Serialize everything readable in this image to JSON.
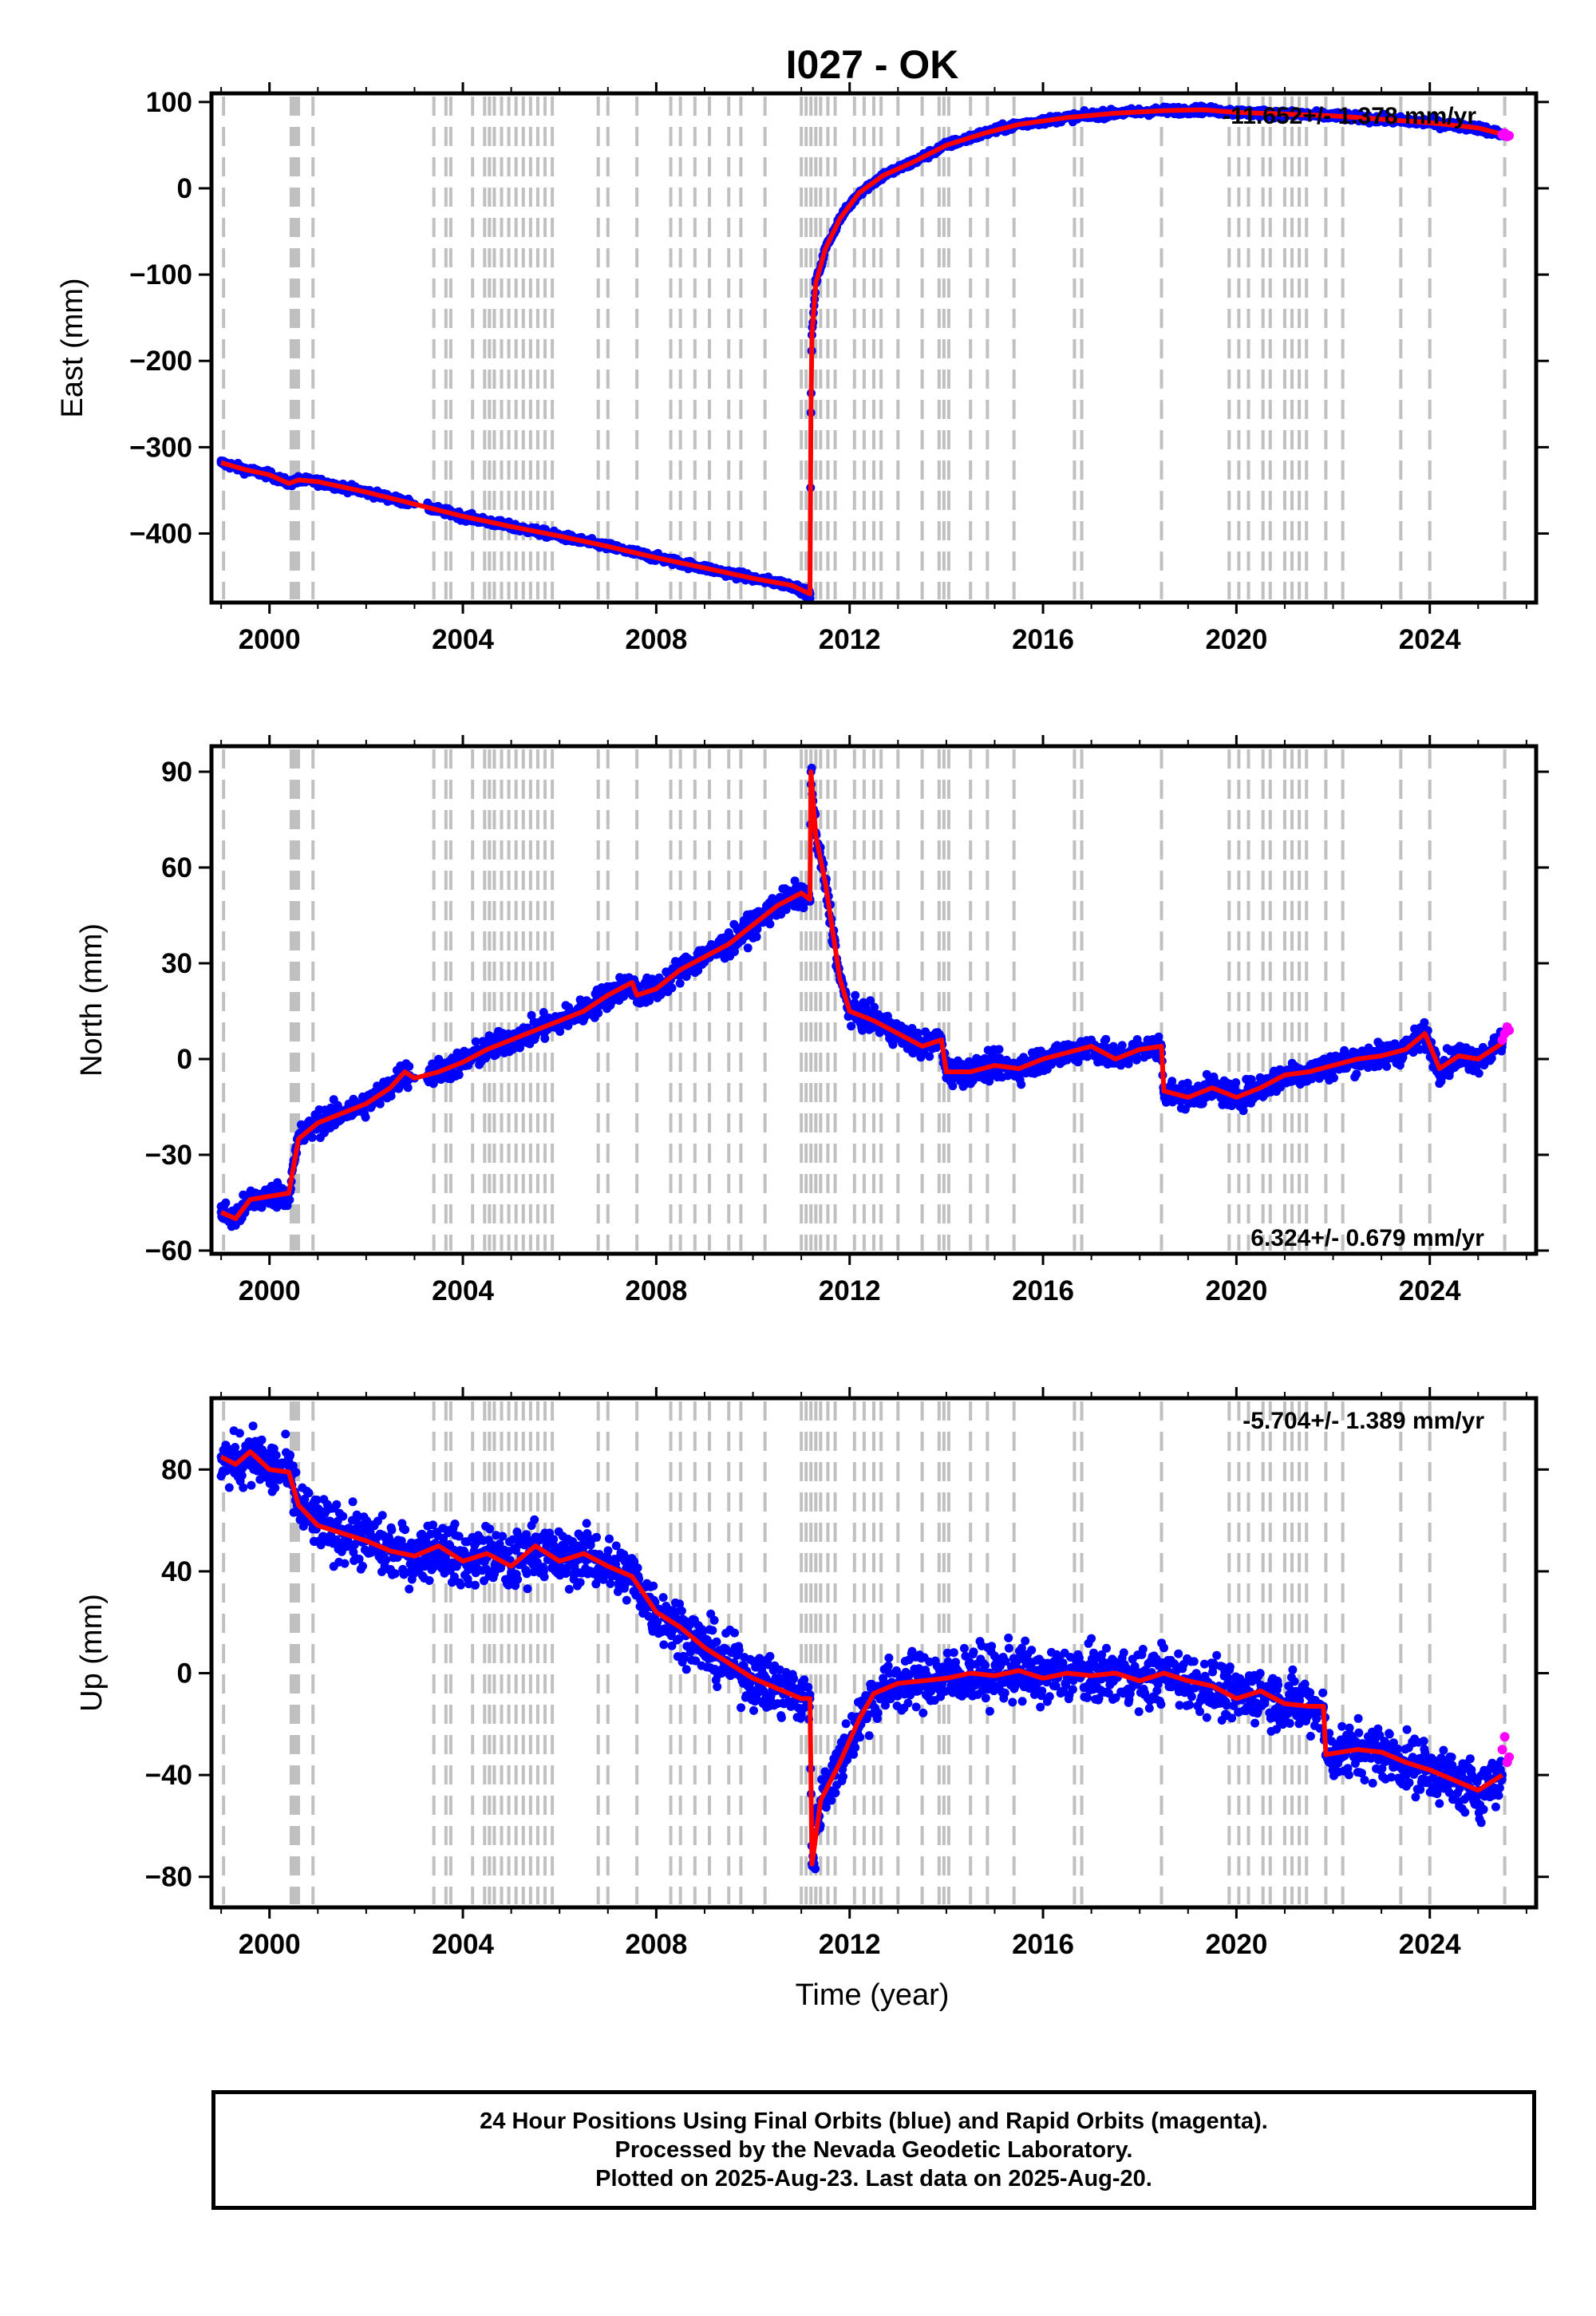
{
  "title": "I027 - OK",
  "xlabel": "Time (year)",
  "x_tick_labels": [
    "2000",
    "2004",
    "2008",
    "2012",
    "2016",
    "2020",
    "2024"
  ],
  "colors": {
    "final_orbits": "#0000ff",
    "rapid_orbits": "#ff00ff",
    "model": "#ff0000",
    "event_lines": "#c0c0c0"
  },
  "footer": {
    "line1": "24 Hour Positions Using Final Orbits (blue) and Rapid Orbits (magenta).",
    "line2": "Processed by the Nevada Geodetic Laboratory.",
    "line3": "Plotted on 2025-Aug-23. Last data on 2025-Aug-20."
  },
  "chart_data": [
    {
      "type": "scatter",
      "ylabel": "East (mm)",
      "rate_text": "-11.652+/- 1.378 mm/yr",
      "rate_position": "top-right",
      "xlim": [
        1998.8,
        2026.2
      ],
      "ylim": [
        -480,
        110
      ],
      "y_ticks": [
        100,
        0,
        -100,
        -200,
        -300,
        -400
      ],
      "y_tick_labels": [
        "100",
        "0",
        "−100",
        "−200",
        "−300",
        "−400"
      ],
      "series": [
        {
          "name": "Final Orbits",
          "x": [
            1999.0,
            1999.5,
            2000.0,
            2000.4,
            2000.6,
            2001.0,
            2002.0,
            2003.0,
            2004.0,
            2005.0,
            2006.0,
            2007.0,
            2008.0,
            2009.0,
            2010.0,
            2010.8,
            2011.18,
            2011.2,
            2011.22,
            2011.3,
            2011.5,
            2011.8,
            2012.2,
            2012.7,
            2013.3,
            2014.0,
            2014.8,
            2015.5,
            2016.5,
            2017.5,
            2018.5,
            2019.3,
            2020.0,
            2021.0,
            2022.0,
            2023.0,
            2024.0,
            2025.0,
            2025.55
          ],
          "values": [
            -318,
            -326,
            -332,
            -342,
            -338,
            -340,
            -352,
            -366,
            -380,
            -392,
            -403,
            -415,
            -428,
            -440,
            -452,
            -460,
            -470,
            -260,
            -170,
            -110,
            -70,
            -35,
            -5,
            15,
            30,
            50,
            64,
            74,
            82,
            87,
            90,
            91,
            88,
            86,
            84,
            80,
            76,
            70,
            62
          ]
        },
        {
          "name": "Rapid Orbits",
          "x": [
            2025.5,
            2025.55,
            2025.6,
            2025.64
          ],
          "values": [
            62,
            64,
            60,
            61
          ]
        }
      ]
    },
    {
      "type": "scatter",
      "ylabel": "North (mm)",
      "rate_text": "6.324+/- 0.679 mm/yr",
      "rate_position": "bottom-right",
      "xlim": [
        1998.8,
        2026.2
      ],
      "ylim": [
        -61,
        98
      ],
      "y_ticks": [
        90,
        60,
        30,
        0,
        -30,
        -60
      ],
      "y_tick_labels": [
        "90",
        "60",
        "30",
        "0",
        "−30",
        "−60"
      ],
      "series": [
        {
          "name": "Final Orbits",
          "x": [
            1999.0,
            1999.3,
            1999.6,
            2000.0,
            2000.4,
            2000.6,
            2001.0,
            2001.5,
            2002.0,
            2002.5,
            2002.8,
            2003.0,
            2003.5,
            2004.0,
            2004.5,
            2005.0,
            2005.5,
            2006.0,
            2006.5,
            2007.0,
            2007.5,
            2007.6,
            2008.0,
            2008.5,
            2009.0,
            2009.5,
            2010.0,
            2010.5,
            2011.0,
            2011.18,
            2011.2,
            2011.3,
            2011.5,
            2011.8,
            2012.0,
            2012.5,
            2013.0,
            2013.5,
            2013.9,
            2014.0,
            2014.5,
            2015.0,
            2015.5,
            2016.0,
            2016.5,
            2017.0,
            2017.5,
            2018.0,
            2018.45,
            2018.5,
            2019.0,
            2019.5,
            2020.0,
            2020.5,
            2021.0,
            2021.5,
            2022.0,
            2022.5,
            2023.0,
            2023.5,
            2023.9,
            2024.2,
            2024.6,
            2025.0,
            2025.5
          ],
          "values": [
            -48,
            -50,
            -44,
            -43,
            -42,
            -25,
            -20,
            -17,
            -14,
            -9,
            -4,
            -6,
            -4,
            -1,
            3,
            6,
            9,
            12,
            15,
            20,
            24,
            20,
            22,
            28,
            32,
            36,
            42,
            48,
            52,
            50,
            90,
            70,
            55,
            25,
            15,
            12,
            8,
            4,
            6,
            -4,
            -4,
            -2,
            -3,
            0,
            2,
            4,
            0,
            3,
            4,
            -10,
            -12,
            -9,
            -12,
            -9,
            -5,
            -4,
            -2,
            0,
            1,
            3,
            8,
            -3,
            1,
            0,
            5
          ]
        },
        {
          "name": "Rapid Orbits",
          "x": [
            2025.5,
            2025.55,
            2025.6,
            2025.64
          ],
          "values": [
            6,
            8,
            10,
            9
          ]
        }
      ]
    },
    {
      "type": "scatter",
      "ylabel": "Up (mm)",
      "rate_text": "-5.704+/- 1.389 mm/yr",
      "rate_position": "top-right",
      "xlim": [
        1998.8,
        2026.2
      ],
      "ylim": [
        -92,
        108
      ],
      "y_ticks": [
        80,
        40,
        0,
        -40,
        -80
      ],
      "y_tick_labels": [
        "80",
        "40",
        "0",
        "−40",
        "−80"
      ],
      "series": [
        {
          "name": "Final Orbits",
          "x": [
            1999.0,
            1999.3,
            1999.6,
            2000.0,
            2000.4,
            2000.6,
            2001.0,
            2001.5,
            2002.0,
            2002.5,
            2003.0,
            2003.5,
            2004.0,
            2004.5,
            2005.0,
            2005.5,
            2006.0,
            2006.5,
            2007.0,
            2007.5,
            2008.0,
            2008.5,
            2009.0,
            2009.5,
            2010.0,
            2010.5,
            2011.0,
            2011.18,
            2011.22,
            2011.4,
            2011.8,
            2012.2,
            2012.5,
            2013.0,
            2013.5,
            2014.0,
            2014.5,
            2015.0,
            2015.5,
            2016.0,
            2016.5,
            2017.0,
            2017.5,
            2018.0,
            2018.5,
            2019.0,
            2019.5,
            2020.0,
            2020.5,
            2021.0,
            2021.5,
            2021.8,
            2021.85,
            2022.5,
            2023.0,
            2023.5,
            2024.0,
            2024.5,
            2025.0,
            2025.5
          ],
          "values": [
            85,
            82,
            87,
            80,
            79,
            66,
            58,
            55,
            52,
            48,
            46,
            50,
            44,
            47,
            42,
            50,
            44,
            47,
            42,
            38,
            24,
            18,
            10,
            4,
            -2,
            -6,
            -10,
            -10,
            -75,
            -50,
            -35,
            -18,
            -8,
            -4,
            -3,
            -2,
            0,
            -1,
            1,
            -2,
            0,
            -1,
            0,
            -3,
            0,
            -3,
            -5,
            -10,
            -7,
            -12,
            -13,
            -13,
            -32,
            -30,
            -31,
            -35,
            -38,
            -42,
            -46,
            -40
          ]
        },
        {
          "name": "Rapid Orbits",
          "x": [
            2025.5,
            2025.55,
            2025.6,
            2025.64
          ],
          "values": [
            -30,
            -25,
            -35,
            -33
          ]
        }
      ]
    }
  ],
  "event_line_years": [
    1999.05,
    2000.45,
    2000.5,
    2000.55,
    2000.6,
    2000.9,
    2003.4,
    2003.65,
    2003.75,
    2004.2,
    2004.45,
    2004.55,
    2004.65,
    2004.8,
    2004.95,
    2005.1,
    2005.25,
    2005.4,
    2005.55,
    2005.7,
    2005.85,
    2006.8,
    2007.0,
    2007.6,
    2008.3,
    2008.5,
    2008.8,
    2009.1,
    2009.5,
    2009.75,
    2010.25,
    2011.0,
    2011.1,
    2011.2,
    2011.3,
    2011.4,
    2011.55,
    2011.7,
    2012.1,
    2012.3,
    2012.5,
    2012.65,
    2013.0,
    2013.5,
    2013.85,
    2013.95,
    2014.05,
    2014.5,
    2014.85,
    2015.4,
    2016.65,
    2016.8,
    2018.45,
    2019.85,
    2020.05,
    2020.25,
    2020.55,
    2020.7,
    2021.0,
    2021.15,
    2021.3,
    2021.45,
    2021.85,
    2022.2,
    2023.4,
    2024.0,
    2025.55
  ]
}
